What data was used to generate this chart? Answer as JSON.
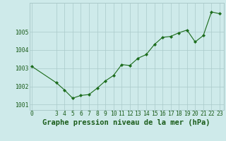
{
  "x": [
    0,
    3,
    4,
    5,
    6,
    7,
    8,
    9,
    10,
    11,
    12,
    13,
    14,
    15,
    16,
    17,
    18,
    19,
    20,
    21,
    22,
    23
  ],
  "y": [
    1003.1,
    1002.2,
    1001.8,
    1001.35,
    1001.5,
    1001.55,
    1001.9,
    1002.3,
    1002.6,
    1003.2,
    1003.15,
    1003.55,
    1003.75,
    1004.3,
    1004.7,
    1004.75,
    1004.95,
    1005.1,
    1004.45,
    1004.8,
    1006.1,
    1006.0
  ],
  "line_color": "#1a6b1a",
  "marker": "D",
  "marker_size": 2.2,
  "bg_color": "#ceeaea",
  "grid_color": "#aacaca",
  "title": "Graphe pression niveau de la mer (hPa)",
  "ylim": [
    1000.7,
    1006.6
  ],
  "yticks": [
    1001,
    1002,
    1003,
    1004,
    1005
  ],
  "ytick_labels": [
    "1001",
    "1002",
    "1003",
    "1004",
    "1005"
  ],
  "xticks": [
    0,
    3,
    4,
    5,
    6,
    7,
    8,
    9,
    10,
    11,
    12,
    13,
    14,
    15,
    16,
    17,
    18,
    19,
    20,
    21,
    22,
    23
  ],
  "title_fontsize": 7.5,
  "tick_fontsize": 5.8,
  "title_color": "#1a5c1a",
  "tick_color": "#1a5c1a",
  "spine_color": "#aacaca"
}
